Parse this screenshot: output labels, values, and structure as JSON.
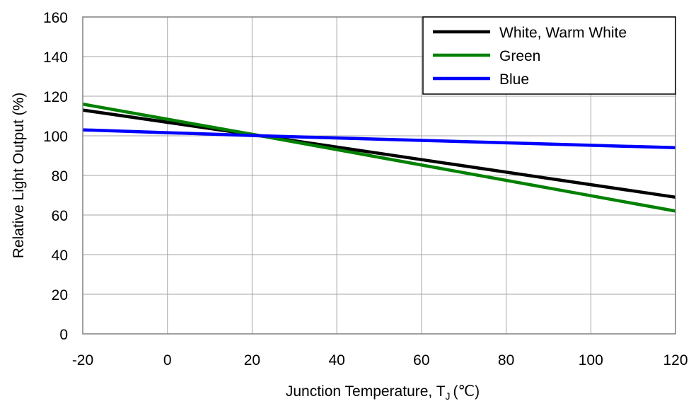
{
  "chart_data": {
    "type": "line",
    "title": "",
    "xlabel": "Junction Temperature, T",
    "xlabel_subscript": "J",
    "xlabel_unit": "(℃)",
    "ylabel": "Relative Light Output (%)",
    "xlim": [
      -20,
      120
    ],
    "ylim": [
      0,
      160
    ],
    "x_ticks": [
      -20,
      0,
      20,
      40,
      60,
      80,
      100,
      120
    ],
    "y_ticks": [
      0,
      20,
      40,
      60,
      80,
      100,
      120,
      140,
      160
    ],
    "x_tick_labels": [
      "-20",
      "0",
      "20",
      "40",
      "60",
      "80",
      "100",
      "120"
    ],
    "y_tick_labels": [
      "0",
      "20",
      "40",
      "60",
      "80",
      "100",
      "120",
      "140",
      "160"
    ],
    "grid": true,
    "legend_position": "top-right",
    "series": [
      {
        "name": "White, Warm White",
        "color": "#000000",
        "x": [
          -20,
          22,
          120
        ],
        "y": [
          113,
          100,
          69
        ]
      },
      {
        "name": "Green",
        "color": "#008000",
        "x": [
          -20,
          22,
          120
        ],
        "y": [
          116,
          100,
          62
        ]
      },
      {
        "name": "Blue",
        "color": "#0000ff",
        "x": [
          -20,
          22,
          120
        ],
        "y": [
          103,
          100,
          94
        ]
      }
    ]
  }
}
